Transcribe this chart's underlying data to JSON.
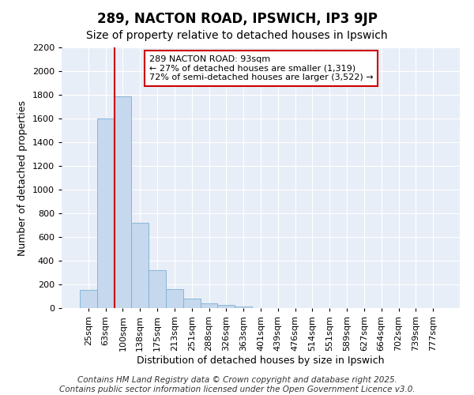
{
  "title": "289, NACTON ROAD, IPSWICH, IP3 9JP",
  "subtitle": "Size of property relative to detached houses in Ipswich",
  "xlabel": "Distribution of detached houses by size in Ipswich",
  "ylabel": "Number of detached properties",
  "categories": [
    "25sqm",
    "63sqm",
    "100sqm",
    "138sqm",
    "175sqm",
    "213sqm",
    "251sqm",
    "288sqm",
    "326sqm",
    "363sqm",
    "401sqm",
    "439sqm",
    "476sqm",
    "514sqm",
    "551sqm",
    "589sqm",
    "627sqm",
    "664sqm",
    "702sqm",
    "739sqm",
    "777sqm"
  ],
  "values": [
    155,
    1600,
    1790,
    720,
    320,
    160,
    80,
    40,
    25,
    15,
    0,
    0,
    0,
    0,
    0,
    0,
    0,
    0,
    0,
    0,
    0
  ],
  "bar_color": "#c5d8ed",
  "bar_edge_color": "#7bafd4",
  "background_color": "#ffffff",
  "plot_bg_color": "#e8eef7",
  "grid_color": "#ffffff",
  "annotation_text": "289 NACTON ROAD: 93sqm\n← 27% of detached houses are smaller (1,319)\n72% of semi-detached houses are larger (3,522) →",
  "annotation_box_color": "#ffffff",
  "annotation_border_color": "#cc0000",
  "red_line_bin": 2,
  "ylim": [
    0,
    2200
  ],
  "yticks": [
    0,
    200,
    400,
    600,
    800,
    1000,
    1200,
    1400,
    1600,
    1800,
    2000,
    2200
  ],
  "footer_text": "Contains HM Land Registry data © Crown copyright and database right 2025.\nContains public sector information licensed under the Open Government Licence v3.0.",
  "title_fontsize": 12,
  "subtitle_fontsize": 10,
  "xlabel_fontsize": 9,
  "ylabel_fontsize": 9,
  "tick_fontsize": 8,
  "footer_fontsize": 7.5
}
